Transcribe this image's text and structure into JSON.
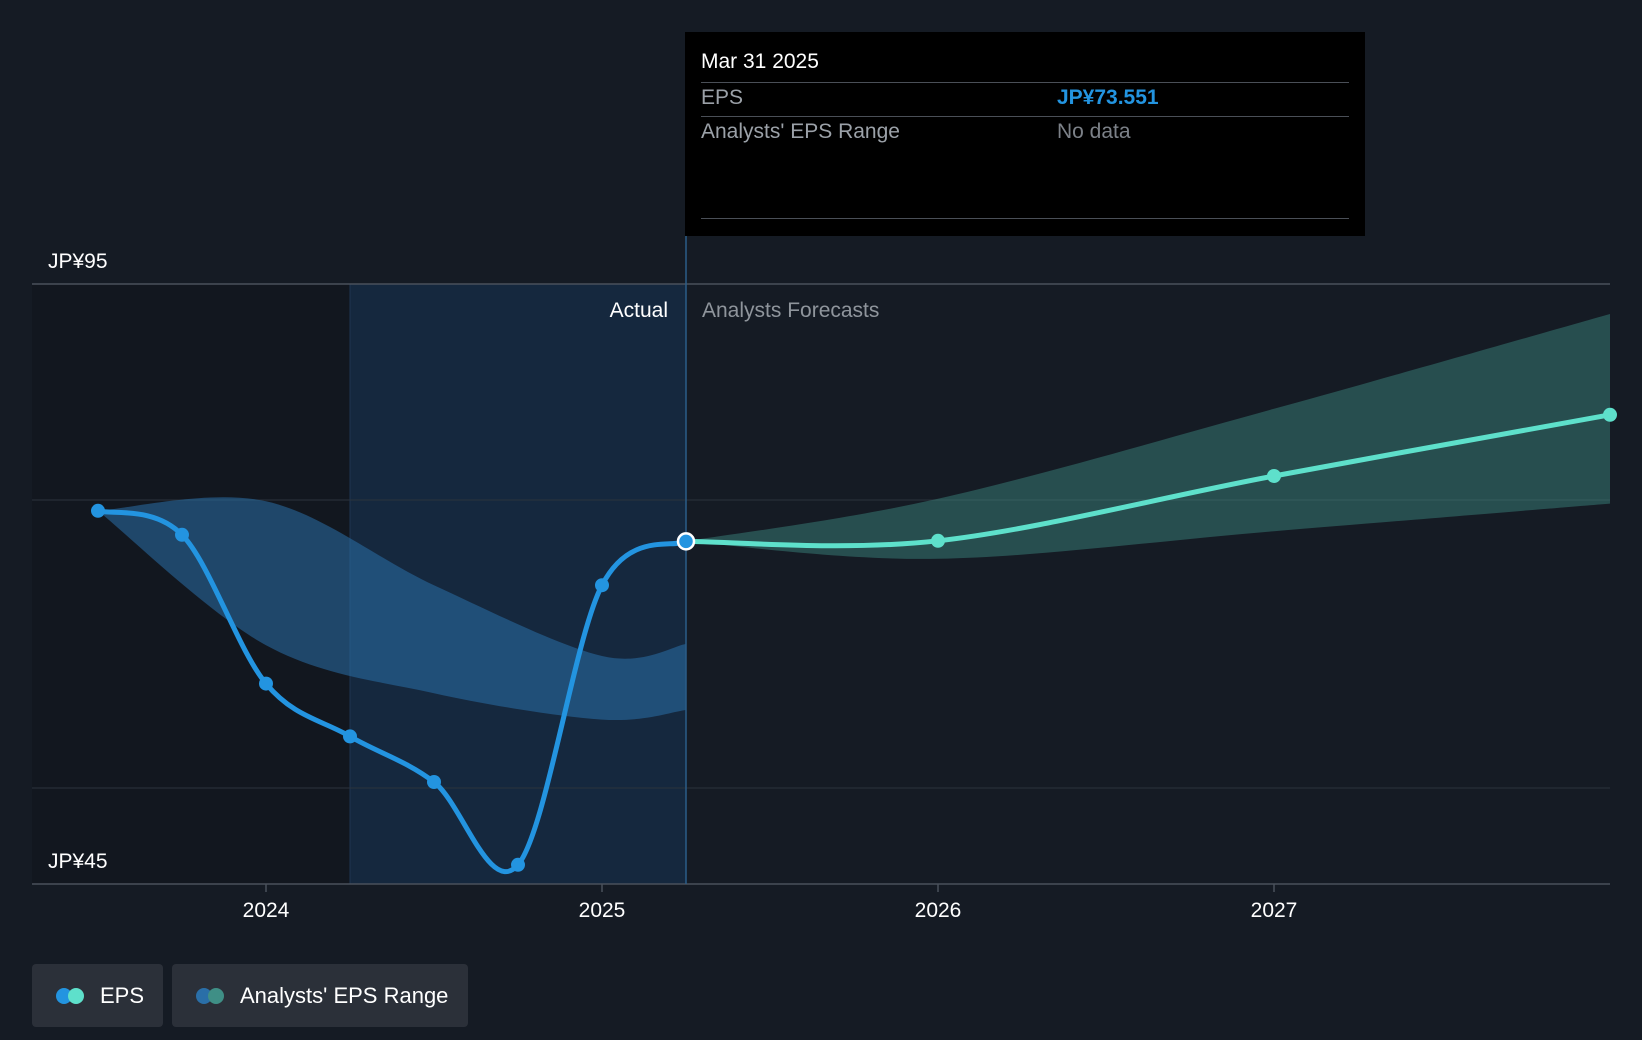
{
  "chart_data": {
    "type": "line",
    "title": "EPS",
    "y_axis": {
      "min": 45,
      "max": 95,
      "top_label": "JP¥95",
      "bottom_label": "JP¥45"
    },
    "x_ticks": [
      {
        "label": "2024",
        "t": 2024.0
      },
      {
        "label": "2025",
        "t": 2025.0
      },
      {
        "label": "2026",
        "t": 2026.0
      },
      {
        "label": "2027",
        "t": 2027.0
      }
    ],
    "sections": {
      "actual_label": "Actual",
      "forecast_label": "Analysts Forecasts"
    },
    "eps_actual": [
      {
        "t": 2023.5,
        "v": 76.1
      },
      {
        "t": 2023.75,
        "v": 74.1
      },
      {
        "t": 2024.0,
        "v": 61.7
      },
      {
        "t": 2024.25,
        "v": 57.3
      },
      {
        "t": 2024.5,
        "v": 53.5
      },
      {
        "t": 2024.75,
        "v": 46.6
      },
      {
        "t": 2025.0,
        "v": 69.9
      },
      {
        "t": 2025.25,
        "v": 73.551
      }
    ],
    "eps_forecast": [
      {
        "t": 2025.25,
        "v": 73.551
      },
      {
        "t": 2026.0,
        "v": 73.6
      },
      {
        "t": 2027.0,
        "v": 79.0
      },
      {
        "t": 2028.0,
        "v": 84.1
      }
    ],
    "actual_range_band": [
      {
        "t": 2023.5,
        "high": 76.1,
        "low": 76.1
      },
      {
        "t": 2024.0,
        "high": 76.9,
        "low": 64.9
      },
      {
        "t": 2024.5,
        "high": 69.9,
        "low": 60.9
      },
      {
        "t": 2025.0,
        "high": 64.0,
        "low": 58.7
      },
      {
        "t": 2025.25,
        "high": 65.0,
        "low": 59.5
      }
    ],
    "forecast_range_band": [
      {
        "t": 2025.25,
        "high": 73.551,
        "low": 73.551
      },
      {
        "t": 2026.0,
        "high": 77.1,
        "low": 72.1
      },
      {
        "t": 2027.0,
        "high": 84.6,
        "low": 74.4
      },
      {
        "t": 2028.0,
        "high": 92.5,
        "low": 76.7
      }
    ],
    "highlight_from": 2024.25,
    "divider_at": 2025.25
  },
  "tooltip": {
    "date": "Mar 31 2025",
    "eps_label": "EPS",
    "eps_value": "JP¥73.551",
    "range_label": "Analysts' EPS Range",
    "range_value": "No data"
  },
  "legend": {
    "eps_label": "EPS",
    "range_label": "Analysts' EPS Range"
  },
  "colors": {
    "eps_actual": "#2394e0",
    "eps_forecast": "#5ee0cb",
    "range_actual": "#2a6fa8",
    "range_forecast": "#3f8f86",
    "accent_value": "#2394e0"
  }
}
